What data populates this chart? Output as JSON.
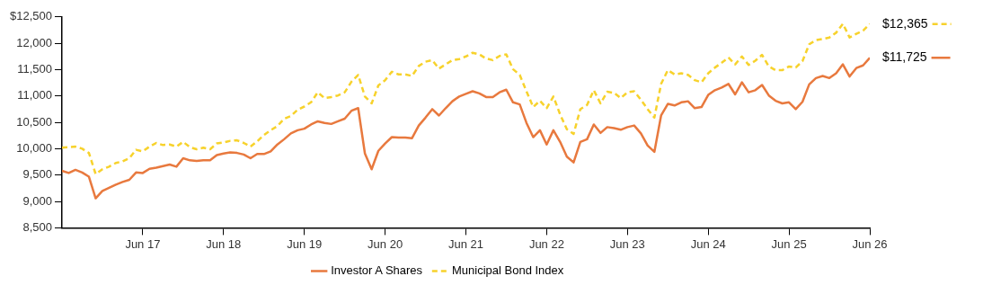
{
  "chart_data": {
    "type": "line",
    "x": [
      "2016-06",
      "2016-07",
      "2016-08",
      "2016-09",
      "2016-10",
      "2016-11",
      "2016-12",
      "2017-01",
      "2017-02",
      "2017-03",
      "2017-04",
      "2017-05",
      "2017-06",
      "2017-07",
      "2017-08",
      "2017-09",
      "2017-10",
      "2017-11",
      "2017-12",
      "2018-01",
      "2018-02",
      "2018-03",
      "2018-04",
      "2018-05",
      "2018-06",
      "2018-07",
      "2018-08",
      "2018-09",
      "2018-10",
      "2018-11",
      "2018-12",
      "2019-01",
      "2019-02",
      "2019-03",
      "2019-04",
      "2019-05",
      "2019-06",
      "2019-07",
      "2019-08",
      "2019-09",
      "2019-10",
      "2019-11",
      "2019-12",
      "2020-01",
      "2020-02",
      "2020-03",
      "2020-04",
      "2020-05",
      "2020-06",
      "2020-07",
      "2020-08",
      "2020-09",
      "2020-10",
      "2020-11",
      "2020-12",
      "2021-01",
      "2021-02",
      "2021-03",
      "2021-04",
      "2021-05",
      "2021-06",
      "2021-07",
      "2021-08",
      "2021-09",
      "2021-10",
      "2021-11",
      "2021-12",
      "2022-01",
      "2022-02",
      "2022-03",
      "2022-04",
      "2022-05",
      "2022-06",
      "2022-07",
      "2022-08",
      "2022-09",
      "2022-10",
      "2022-11",
      "2022-12",
      "2023-01",
      "2023-02",
      "2023-03",
      "2023-04",
      "2023-05",
      "2023-06",
      "2023-07",
      "2023-08",
      "2023-09",
      "2023-10",
      "2023-11",
      "2023-12",
      "2024-01",
      "2024-02",
      "2024-03",
      "2024-04",
      "2024-05",
      "2024-06",
      "2024-07",
      "2024-08",
      "2024-09",
      "2024-10",
      "2024-11",
      "2024-12",
      "2025-01",
      "2025-02",
      "2025-03",
      "2025-04",
      "2025-05",
      "2025-06",
      "2025-07",
      "2025-08",
      "2025-09",
      "2025-10",
      "2025-11",
      "2025-12",
      "2026-01",
      "2026-02",
      "2026-03",
      "2026-04",
      "2026-05",
      "2026-06"
    ],
    "xlim": [
      "2016-06",
      "2026-06"
    ],
    "xticks": [
      {
        "value": "2017-06",
        "label": "Jun 17"
      },
      {
        "value": "2018-06",
        "label": "Jun 18"
      },
      {
        "value": "2019-06",
        "label": "Jun 19"
      },
      {
        "value": "2020-06",
        "label": "Jun 20"
      },
      {
        "value": "2021-06",
        "label": "Jun 21"
      },
      {
        "value": "2022-06",
        "label": "Jun 22"
      },
      {
        "value": "2023-06",
        "label": "Jun 23"
      },
      {
        "value": "2024-06",
        "label": "Jun 24"
      },
      {
        "value": "2025-06",
        "label": "Jun 25"
      },
      {
        "value": "2026-06",
        "label": "Jun 26"
      }
    ],
    "ylim": [
      8500,
      12500
    ],
    "yticks": [
      {
        "value": 8500,
        "label": "8,500"
      },
      {
        "value": 9000,
        "label": "9,000"
      },
      {
        "value": 9500,
        "label": "9,500"
      },
      {
        "value": 10000,
        "label": "10,000"
      },
      {
        "value": 10500,
        "label": "10,500"
      },
      {
        "value": 11000,
        "label": "11,000"
      },
      {
        "value": 11500,
        "label": "11,500"
      },
      {
        "value": 12000,
        "label": "12,000"
      },
      {
        "value": 12500,
        "label": "$12,500"
      }
    ],
    "grid": false,
    "legend": "bottom",
    "marker": "none",
    "series": [
      {
        "name": "Investor A Shares",
        "color": "#e8793e",
        "line_style": "solid",
        "values": [
          9580,
          9540,
          9600,
          9550,
          9470,
          9060,
          9200,
          9260,
          9320,
          9370,
          9410,
          9550,
          9540,
          9620,
          9640,
          9670,
          9700,
          9660,
          9820,
          9780,
          9770,
          9780,
          9780,
          9880,
          9910,
          9930,
          9920,
          9890,
          9820,
          9900,
          9900,
          9950,
          10080,
          10180,
          10290,
          10350,
          10380,
          10460,
          10520,
          10490,
          10470,
          10520,
          10570,
          10720,
          10770,
          9910,
          9610,
          9960,
          10100,
          10220,
          10210,
          10210,
          10200,
          10440,
          10590,
          10750,
          10630,
          10770,
          10900,
          10990,
          11040,
          11090,
          11050,
          10980,
          10980,
          11070,
          11120,
          10880,
          10840,
          10490,
          10220,
          10350,
          10080,
          10350,
          10130,
          9850,
          9740,
          10130,
          10180,
          10460,
          10300,
          10410,
          10390,
          10360,
          10410,
          10440,
          10290,
          10060,
          9940,
          10630,
          10850,
          10820,
          10880,
          10900,
          10770,
          10790,
          11020,
          11110,
          11160,
          11230,
          11030,
          11260,
          11070,
          11110,
          11210,
          11010,
          10910,
          10860,
          10880,
          10750,
          10890,
          11220,
          11340,
          11380,
          11340,
          11430,
          11600,
          11370,
          11530,
          11580,
          11725
        ],
        "value_labels": [
          null,
          null,
          null,
          null,
          null,
          null,
          null,
          null,
          null,
          null,
          null,
          null,
          null,
          null,
          null,
          null,
          null,
          null,
          null,
          null,
          null,
          null,
          null,
          null,
          null,
          null,
          null,
          null,
          null,
          null,
          null,
          null,
          null,
          null,
          null,
          null,
          null,
          null,
          null,
          null,
          null,
          null,
          null,
          null,
          null,
          null,
          null,
          null,
          null,
          null,
          null,
          null,
          null,
          null,
          null,
          null,
          null,
          null,
          null,
          null,
          null,
          null,
          null,
          null,
          null,
          null,
          null,
          null,
          null,
          null,
          null,
          null,
          null,
          null,
          null,
          null,
          null,
          null,
          null,
          null,
          null,
          null,
          null,
          null,
          null,
          null,
          null,
          null,
          null,
          null,
          null,
          null,
          null,
          null,
          null,
          null,
          null,
          null,
          null,
          null,
          null,
          null,
          null,
          null,
          null,
          null,
          null,
          null,
          null,
          null,
          null,
          null,
          null,
          null,
          null,
          null,
          null,
          null,
          null,
          null,
          "$11,725"
        ]
      },
      {
        "name": "Municipal Bond Index",
        "color": "#f7d22c",
        "line_style": "dashed",
        "values": [
          10020,
          10030,
          10040,
          10000,
          9920,
          9520,
          9610,
          9660,
          9730,
          9760,
          9820,
          9980,
          9950,
          10040,
          10110,
          10070,
          10080,
          10040,
          10130,
          10030,
          9990,
          10020,
          9990,
          10100,
          10120,
          10150,
          10160,
          10110,
          10040,
          10140,
          10260,
          10350,
          10430,
          10570,
          10620,
          10740,
          10800,
          10880,
          11070,
          10960,
          10980,
          11010,
          11070,
          11270,
          11400,
          10990,
          10860,
          11200,
          11300,
          11460,
          11410,
          11410,
          11380,
          11570,
          11650,
          11680,
          11520,
          11600,
          11680,
          11700,
          11750,
          11820,
          11790,
          11710,
          11680,
          11760,
          11790,
          11510,
          11400,
          11090,
          10790,
          10910,
          10770,
          10990,
          10650,
          10370,
          10280,
          10750,
          10830,
          11110,
          10860,
          11080,
          11060,
          10960,
          11070,
          11090,
          10930,
          10750,
          10590,
          11230,
          11490,
          11410,
          11430,
          11400,
          11300,
          11260,
          11430,
          11540,
          11630,
          11730,
          11600,
          11750,
          11590,
          11670,
          11780,
          11560,
          11490,
          11490,
          11560,
          11540,
          11660,
          11980,
          12060,
          12080,
          12110,
          12200,
          12370,
          12110,
          12180,
          12240,
          12365
        ],
        "value_labels": [
          null,
          null,
          null,
          null,
          null,
          null,
          null,
          null,
          null,
          null,
          null,
          null,
          null,
          null,
          null,
          null,
          null,
          null,
          null,
          null,
          null,
          null,
          null,
          null,
          null,
          null,
          null,
          null,
          null,
          null,
          null,
          null,
          null,
          null,
          null,
          null,
          null,
          null,
          null,
          null,
          null,
          null,
          null,
          null,
          null,
          null,
          null,
          null,
          null,
          null,
          null,
          null,
          null,
          null,
          null,
          null,
          null,
          null,
          null,
          null,
          null,
          null,
          null,
          null,
          null,
          null,
          null,
          null,
          null,
          null,
          null,
          null,
          null,
          null,
          null,
          null,
          null,
          null,
          null,
          null,
          null,
          null,
          null,
          null,
          null,
          null,
          null,
          null,
          null,
          null,
          null,
          null,
          null,
          null,
          null,
          null,
          null,
          null,
          null,
          null,
          null,
          null,
          null,
          null,
          null,
          null,
          null,
          null,
          null,
          null,
          null,
          null,
          null,
          null,
          null,
          null,
          null,
          null,
          null,
          null,
          "$12,365"
        ]
      }
    ]
  }
}
